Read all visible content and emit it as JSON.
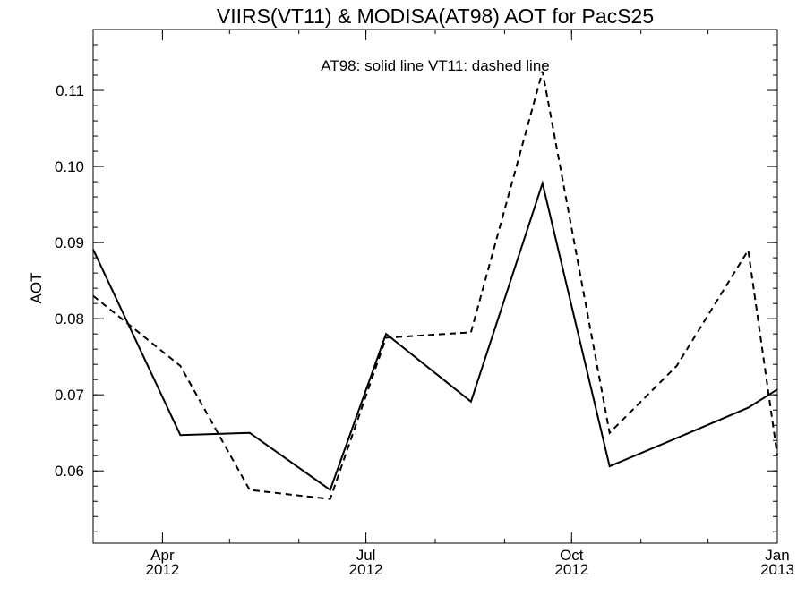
{
  "chart_data": {
    "type": "line",
    "title": "VIIRS(VT11) & MODISA(AT98)  AOT for PacS25",
    "ylabel": "AOT",
    "xlabel": "",
    "annotation": "AT98: solid line   VT11: dashed line",
    "xlim": [
      "2012-03-01",
      "2013-01-01"
    ],
    "ylim": [
      0.0505,
      0.118
    ],
    "y_ticks": [
      {
        "value": 0.06,
        "label": "0.06"
      },
      {
        "value": 0.07,
        "label": "0.07"
      },
      {
        "value": 0.08,
        "label": "0.08"
      },
      {
        "value": 0.09,
        "label": "0.09"
      },
      {
        "value": 0.1,
        "label": "0.10"
      },
      {
        "value": 0.11,
        "label": "0.11"
      }
    ],
    "x_ticks": [
      {
        "date": "2012-04-01",
        "month": "Apr",
        "year": "2012"
      },
      {
        "date": "2012-07-01",
        "month": "Jul",
        "year": "2012"
      },
      {
        "date": "2012-10-01",
        "month": "Oct",
        "year": "2012"
      },
      {
        "date": "2013-01-01",
        "month": "Jan",
        "year": "2013"
      }
    ],
    "grid": false,
    "series": [
      {
        "name": "AT98",
        "style": "solid",
        "color": "#000000",
        "points": [
          {
            "x": "2012-03-01",
            "y": 0.0891
          },
          {
            "x": "2012-04-09",
            "y": 0.0647
          },
          {
            "x": "2012-05-10",
            "y": 0.065
          },
          {
            "x": "2012-06-15",
            "y": 0.0575
          },
          {
            "x": "2012-07-10",
            "y": 0.078
          },
          {
            "x": "2012-08-17",
            "y": 0.0691
          },
          {
            "x": "2012-09-18",
            "y": 0.0978
          },
          {
            "x": "2012-10-18",
            "y": 0.0606
          },
          {
            "x": "2012-11-17",
            "y": 0.0643
          },
          {
            "x": "2012-12-19",
            "y": 0.0683
          },
          {
            "x": "2013-01-01",
            "y": 0.0707
          }
        ]
      },
      {
        "name": "VT11",
        "style": "dashed",
        "color": "#000000",
        "points": [
          {
            "x": "2012-03-01",
            "y": 0.083
          },
          {
            "x": "2012-04-09",
            "y": 0.0738
          },
          {
            "x": "2012-05-10",
            "y": 0.0575
          },
          {
            "x": "2012-06-15",
            "y": 0.0563
          },
          {
            "x": "2012-07-10",
            "y": 0.0775
          },
          {
            "x": "2012-08-17",
            "y": 0.0782
          },
          {
            "x": "2012-09-18",
            "y": 0.1125
          },
          {
            "x": "2012-10-18",
            "y": 0.065
          },
          {
            "x": "2012-11-17",
            "y": 0.0738
          },
          {
            "x": "2012-12-19",
            "y": 0.089
          },
          {
            "x": "2013-01-01",
            "y": 0.062
          }
        ]
      }
    ]
  }
}
